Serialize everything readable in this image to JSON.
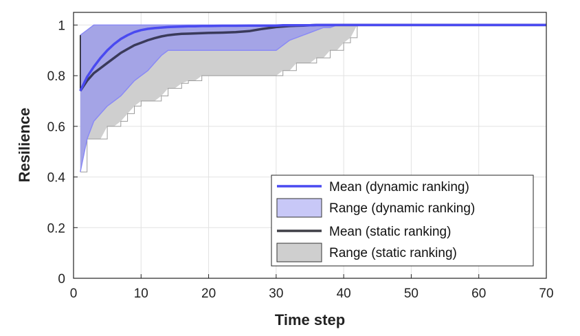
{
  "chart_data": {
    "type": "line",
    "xlabel": "Time step",
    "ylabel": "Resilience",
    "xlim": [
      0,
      70
    ],
    "ylim": [
      0,
      1.05
    ],
    "xticks": [
      "0",
      "10",
      "20",
      "30",
      "40",
      "50",
      "60",
      "70"
    ],
    "yticks": [
      "0",
      "0.2",
      "0.4",
      "0.6",
      "0.8",
      "1"
    ],
    "grid": true,
    "legend_position": "bottom-right",
    "colors": {
      "dynamic_mean": "#4a4af0",
      "dynamic_range_fill": "#9c9cea",
      "dynamic_range_edge": "#8a8af5",
      "static_mean": "#3a3a5a",
      "static_range_fill": "#cfcfcf",
      "static_range_edge": "#9a9a9a"
    },
    "x": [
      1,
      2,
      3,
      4,
      5,
      6,
      7,
      8,
      9,
      10,
      11,
      12,
      13,
      14,
      15,
      16,
      17,
      18,
      19,
      20,
      22,
      24,
      26,
      28,
      30,
      31,
      32,
      33,
      34,
      35,
      36,
      37,
      38,
      39,
      40,
      41,
      42,
      45,
      50,
      55,
      60,
      65,
      70
    ],
    "series": [
      {
        "name": "Mean (dynamic ranking)",
        "kind": "line",
        "y": [
          0.74,
          0.795,
          0.835,
          0.87,
          0.9,
          0.925,
          0.945,
          0.96,
          0.972,
          0.98,
          0.985,
          0.988,
          0.99,
          0.992,
          0.993,
          0.994,
          0.995,
          0.995,
          0.996,
          0.996,
          0.997,
          0.997,
          0.998,
          0.998,
          0.998,
          0.999,
          0.999,
          0.999,
          0.999,
          0.999,
          1,
          1,
          1,
          1,
          1,
          1,
          1,
          1,
          1,
          1,
          1,
          1,
          1
        ]
      },
      {
        "name": "Range (dynamic ranking)",
        "kind": "range",
        "lower": [
          0.42,
          0.55,
          0.62,
          0.65,
          0.68,
          0.7,
          0.72,
          0.75,
          0.78,
          0.8,
          0.82,
          0.85,
          0.88,
          0.9,
          0.9,
          0.9,
          0.9,
          0.9,
          0.9,
          0.9,
          0.9,
          0.9,
          0.9,
          0.9,
          0.9,
          0.92,
          0.94,
          0.95,
          0.96,
          0.97,
          0.98,
          0.99,
          0.99,
          1,
          1,
          1,
          1,
          1,
          1,
          1,
          1,
          1,
          1
        ],
        "upper": [
          0.96,
          0.98,
          1,
          1,
          1,
          1,
          1,
          1,
          1,
          1,
          1,
          1,
          1,
          1,
          1,
          1,
          1,
          1,
          1,
          1,
          1,
          1,
          1,
          1,
          1,
          1,
          1,
          1,
          1,
          1,
          1,
          1,
          1,
          1,
          1,
          1,
          1,
          1,
          1,
          1,
          1,
          1,
          1
        ]
      },
      {
        "name": "Mean (static ranking)",
        "kind": "line",
        "y": [
          0.74,
          0.78,
          0.81,
          0.83,
          0.85,
          0.87,
          0.89,
          0.905,
          0.92,
          0.93,
          0.94,
          0.948,
          0.955,
          0.96,
          0.963,
          0.965,
          0.966,
          0.967,
          0.968,
          0.969,
          0.97,
          0.972,
          0.976,
          0.985,
          0.992,
          0.994,
          0.996,
          0.997,
          0.998,
          0.999,
          1,
          1,
          1,
          1,
          1,
          1,
          1,
          1,
          1,
          1,
          1,
          1,
          1
        ]
      },
      {
        "name": "Range (static ranking)",
        "kind": "range",
        "lower": [
          0.42,
          0.55,
          0.55,
          0.55,
          0.6,
          0.6,
          0.62,
          0.65,
          0.68,
          0.7,
          0.7,
          0.7,
          0.72,
          0.75,
          0.75,
          0.77,
          0.78,
          0.78,
          0.8,
          0.8,
          0.8,
          0.8,
          0.8,
          0.8,
          0.8,
          0.82,
          0.82,
          0.85,
          0.85,
          0.85,
          0.87,
          0.87,
          0.9,
          0.9,
          0.93,
          0.95,
          1,
          1,
          1,
          1,
          1,
          1,
          1
        ],
        "upper": [
          0.96,
          0.98,
          1,
          1,
          1,
          1,
          1,
          1,
          1,
          1,
          1,
          1,
          1,
          1,
          1,
          1,
          1,
          1,
          1,
          1,
          1,
          1,
          1,
          1,
          1,
          1,
          1,
          1,
          1,
          1,
          1,
          1,
          1,
          1,
          1,
          1,
          1,
          1,
          1,
          1,
          1,
          1,
          1
        ]
      }
    ]
  }
}
